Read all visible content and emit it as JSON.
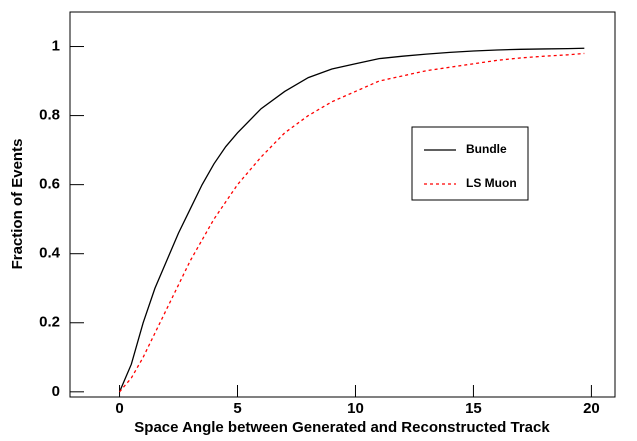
{
  "chart_data": {
    "type": "line",
    "x_label": "Space Angle between Generated and Reconstructed Track",
    "y_label": "Fraction of Events",
    "x": [
      0,
      0.5,
      1,
      1.5,
      2,
      2.5,
      3,
      3.5,
      4,
      4.5,
      5,
      6,
      7,
      8,
      9,
      10,
      11,
      12,
      13,
      14,
      15,
      16,
      17,
      18,
      19,
      19.7
    ],
    "series": [
      {
        "name": "Bundle",
        "color": "#000000",
        "dash": "solid",
        "values": [
          0,
          0.08,
          0.2,
          0.3,
          0.38,
          0.46,
          0.53,
          0.6,
          0.66,
          0.71,
          0.75,
          0.82,
          0.87,
          0.91,
          0.935,
          0.95,
          0.965,
          0.972,
          0.978,
          0.983,
          0.987,
          0.99,
          0.992,
          0.993,
          0.994,
          0.995
        ]
      },
      {
        "name": "LS Muon",
        "color": "#ff0000",
        "dash": "dashed",
        "values": [
          0,
          0.04,
          0.1,
          0.17,
          0.24,
          0.31,
          0.38,
          0.44,
          0.5,
          0.55,
          0.6,
          0.68,
          0.75,
          0.8,
          0.84,
          0.87,
          0.9,
          0.915,
          0.93,
          0.94,
          0.95,
          0.96,
          0.967,
          0.972,
          0.976,
          0.98
        ]
      }
    ],
    "xlim": [
      -2.1,
      21
    ],
    "xticks": [
      0,
      5,
      10,
      15,
      20
    ],
    "ylim": [
      -0.015,
      1.1
    ],
    "yticks": [
      0,
      0.2,
      0.4,
      0.6,
      0.8,
      1
    ],
    "grid": false
  }
}
